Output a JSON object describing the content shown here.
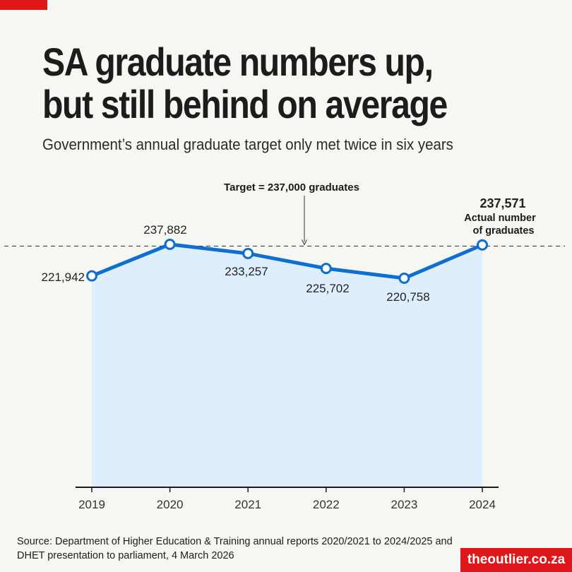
{
  "header": {
    "title_line1": "SA graduate numbers up,",
    "title_line2": "but still behind on average",
    "subtitle": "Government’s annual graduate target only met twice in six years"
  },
  "colors": {
    "accent": "#e0161b",
    "line": "#0c6fd1",
    "area": "#dfeefd",
    "background": "#f6f6f2"
  },
  "chart_data": {
    "type": "area",
    "categories": [
      "2019",
      "2020",
      "2021",
      "2022",
      "2023",
      "2024"
    ],
    "series": [
      {
        "values": [
          221942,
          237882,
          233257,
          225702,
          220758,
          237571
        ]
      }
    ],
    "data_labels": [
      "221,942",
      "237,882",
      "233,257",
      "225,702",
      "220,758",
      "237,571"
    ],
    "target": {
      "value": 237000,
      "label": "Target = 237,000 graduates"
    },
    "annotations": [
      {
        "year": "2024",
        "text_line1": "Actual number",
        "text_line2": "of graduates"
      }
    ],
    "grid": false,
    "legend": "none"
  },
  "footer": {
    "source_line1": "Source: Department of Higher Education & Training annual reports 2020/2021 to  2024/2025 and",
    "source_line2": "DHET presentation to parliament, 4 March 2026",
    "brand": "theoutlier.co.za"
  }
}
